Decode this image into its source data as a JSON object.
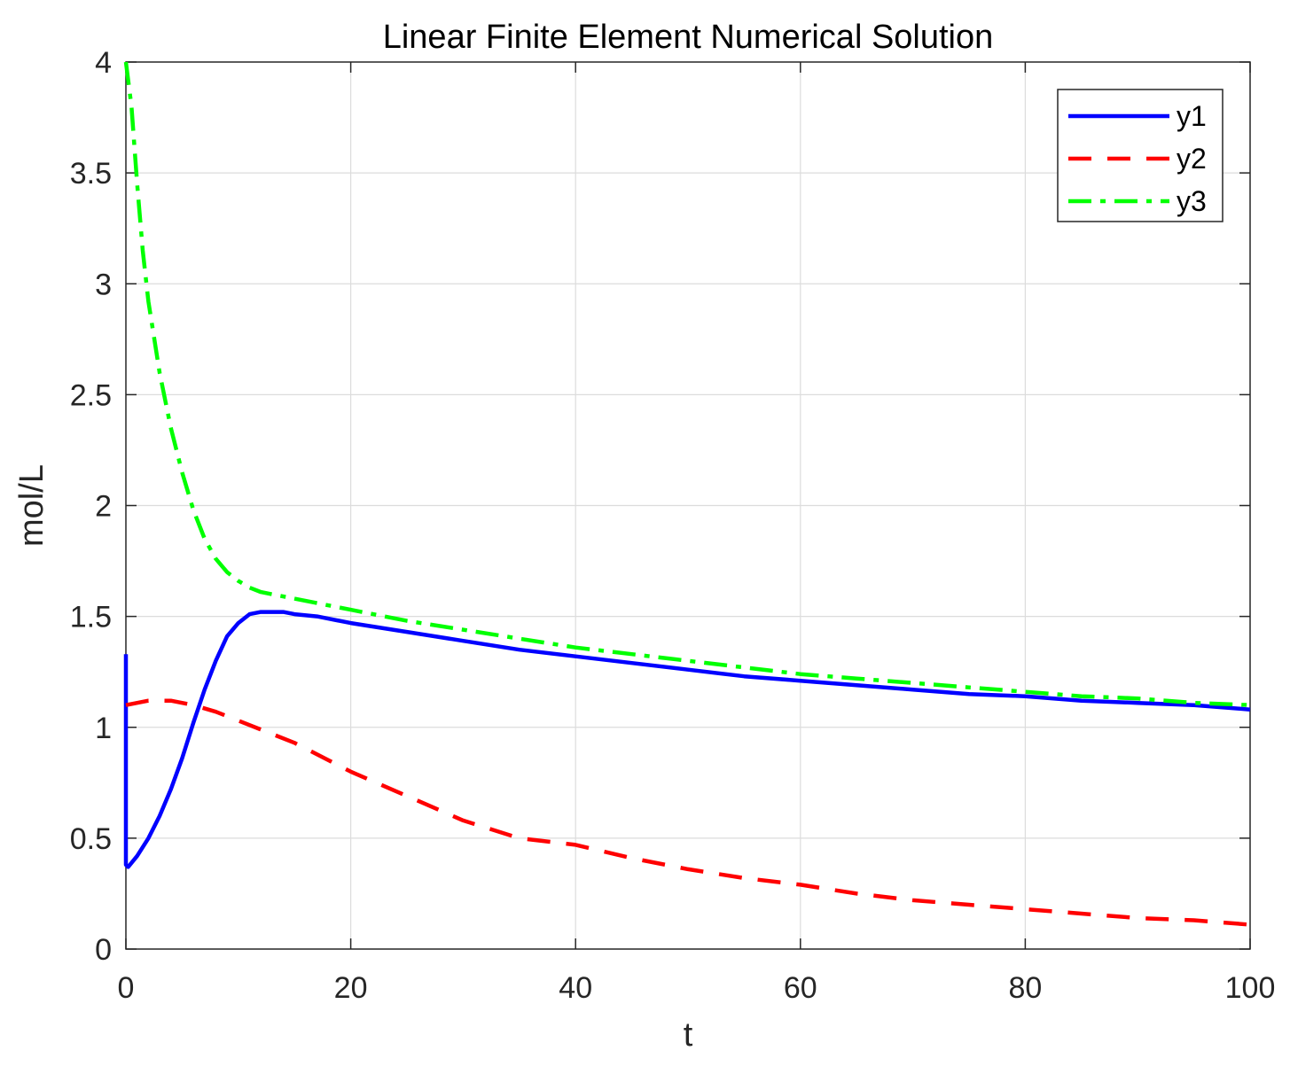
{
  "chart_data": {
    "type": "line",
    "title": "Linear Finite Element Numerical Solution",
    "xlabel": "t",
    "ylabel": "mol/L",
    "xlim": [
      0,
      100
    ],
    "ylim": [
      0,
      4
    ],
    "xticks": [
      0,
      20,
      40,
      60,
      80,
      100
    ],
    "xtick_labels": [
      "0",
      "20",
      "40",
      "60",
      "80",
      "100"
    ],
    "yticks": [
      0,
      0.5,
      1,
      1.5,
      2,
      2.5,
      3,
      3.5,
      4
    ],
    "ytick_labels": [
      "0",
      "0.5",
      "1",
      "1.5",
      "2",
      "2.5",
      "3",
      "3.5",
      "4"
    ],
    "grid": true,
    "legend_position": "top-right",
    "series": [
      {
        "name": "y1",
        "color": "#0000ff",
        "line_style": "solid",
        "x": [
          0,
          0,
          0.2,
          1,
          2,
          3,
          4,
          5,
          6,
          7,
          8,
          9,
          10,
          11,
          12,
          13,
          14,
          15,
          17,
          20,
          25,
          30,
          35,
          40,
          45,
          50,
          55,
          60,
          65,
          70,
          75,
          80,
          85,
          90,
          95,
          100
        ],
        "y": [
          1.33,
          0.38,
          0.37,
          0.42,
          0.5,
          0.6,
          0.72,
          0.86,
          1.02,
          1.17,
          1.3,
          1.41,
          1.47,
          1.51,
          1.52,
          1.52,
          1.52,
          1.51,
          1.5,
          1.47,
          1.43,
          1.39,
          1.35,
          1.32,
          1.29,
          1.26,
          1.23,
          1.21,
          1.19,
          1.17,
          1.15,
          1.14,
          1.12,
          1.11,
          1.1,
          1.08
        ]
      },
      {
        "name": "y2",
        "color": "#ff0000",
        "line_style": "dashed",
        "x": [
          0,
          1,
          2,
          3,
          4,
          5,
          6,
          8,
          10,
          12,
          15,
          20,
          25,
          30,
          35,
          40,
          45,
          50,
          55,
          60,
          65,
          70,
          75,
          80,
          85,
          90,
          95,
          100
        ],
        "y": [
          1.1,
          1.11,
          1.12,
          1.12,
          1.12,
          1.11,
          1.1,
          1.07,
          1.03,
          0.99,
          0.93,
          0.8,
          0.69,
          0.58,
          0.5,
          0.47,
          0.41,
          0.36,
          0.32,
          0.29,
          0.25,
          0.22,
          0.2,
          0.18,
          0.16,
          0.14,
          0.13,
          0.11
        ]
      },
      {
        "name": "y3",
        "color": "#00ff00",
        "line_style": "dashdot",
        "x": [
          0,
          0.5,
          1,
          1.5,
          2,
          3,
          4,
          5,
          6,
          7,
          8,
          9,
          10,
          11,
          12,
          13,
          15,
          17,
          20,
          25,
          30,
          35,
          40,
          45,
          50,
          55,
          60,
          65,
          70,
          75,
          80,
          85,
          90,
          95,
          100
        ],
        "y": [
          4.0,
          3.8,
          3.45,
          3.15,
          2.92,
          2.6,
          2.35,
          2.15,
          1.98,
          1.85,
          1.76,
          1.7,
          1.66,
          1.63,
          1.61,
          1.6,
          1.58,
          1.56,
          1.53,
          1.48,
          1.44,
          1.4,
          1.36,
          1.33,
          1.3,
          1.27,
          1.24,
          1.22,
          1.2,
          1.18,
          1.16,
          1.14,
          1.13,
          1.11,
          1.1
        ]
      }
    ]
  }
}
